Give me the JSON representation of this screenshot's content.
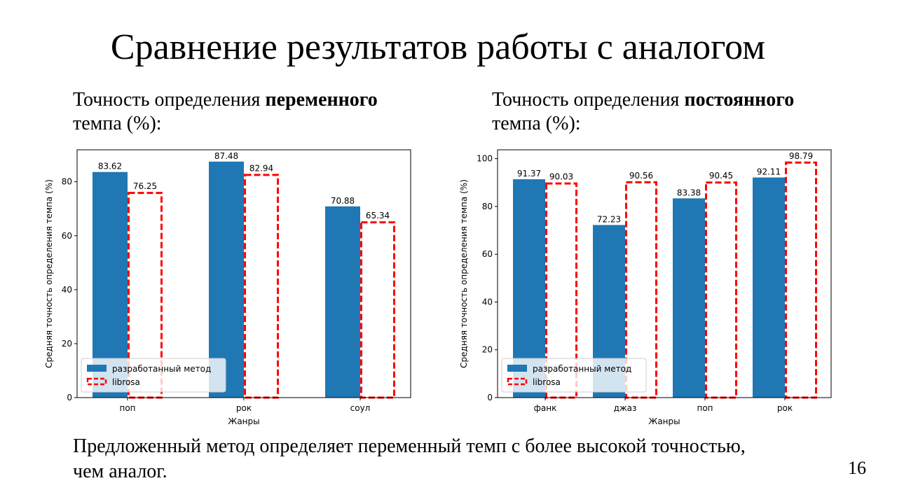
{
  "slide": {
    "title": "Сравнение результатов работы с аналогом",
    "caption_left": {
      "prefix": "Точность определения ",
      "bold": "переменного",
      "suffix": "темпа (%):"
    },
    "caption_right": {
      "prefix": "Точность определения ",
      "bold": "постоянного",
      "suffix": "темпа (%):"
    },
    "conclusion": "Предложенный метод определяет переменный темп с более высокой точностью, чем аналог.",
    "page_number": "16"
  },
  "chart_data": [
    {
      "type": "bar",
      "categories": [
        "поп",
        "рок",
        "соул"
      ],
      "series": [
        {
          "name": "разработанный метод",
          "values": [
            83.62,
            87.48,
            70.88
          ],
          "labels": [
            "83.62",
            "87.48",
            "70.88"
          ],
          "color": "#1f77b4",
          "style": "filled"
        },
        {
          "name": "librosa",
          "values": [
            76.25,
            82.94,
            65.34
          ],
          "labels": [
            "76.25",
            "82.94",
            "65.34"
          ],
          "color": "#ff0000",
          "style": "dashed-outline"
        }
      ],
      "xlabel": "Жанры",
      "ylabel": "Средняя точность определения темпа (%)",
      "ylim": [
        0,
        91.85
      ],
      "yticks": [
        0,
        20,
        40,
        60,
        80
      ],
      "ytick_labels": [
        "0",
        "20",
        "40",
        "60",
        "80"
      ],
      "legend": "lower-left",
      "grid": false
    },
    {
      "type": "bar",
      "categories": [
        "фанк",
        "джаз",
        "поп",
        "рок"
      ],
      "series": [
        {
          "name": "разработанный метод",
          "values": [
            91.37,
            72.23,
            83.38,
            92.11
          ],
          "labels": [
            "91.37",
            "72.23",
            "83.38",
            "92.11"
          ],
          "color": "#1f77b4",
          "style": "filled"
        },
        {
          "name": "librosa",
          "values": [
            90.03,
            90.56,
            90.45,
            98.79
          ],
          "labels": [
            "90.03",
            "90.56",
            "90.45",
            "98.79"
          ],
          "color": "#ff0000",
          "style": "dashed-outline"
        }
      ],
      "xlabel": "Жанры",
      "ylabel": "Средняя точность определения темпа (%)",
      "ylim": [
        0,
        103.7
      ],
      "yticks": [
        0,
        20,
        40,
        60,
        80,
        100
      ],
      "ytick_labels": [
        "0",
        "20",
        "40",
        "60",
        "80",
        "100"
      ],
      "legend": "lower-left",
      "grid": false
    }
  ]
}
